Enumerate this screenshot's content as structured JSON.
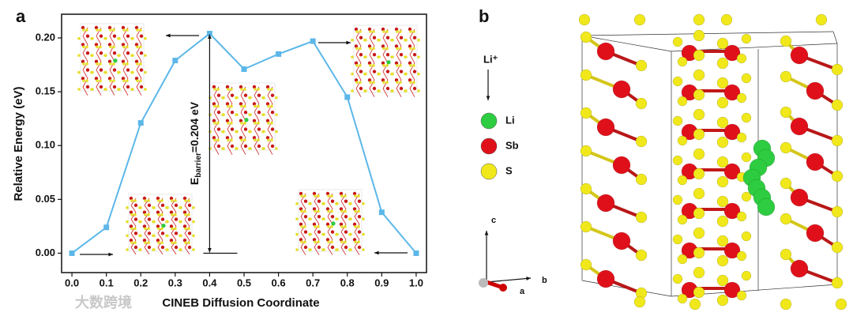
{
  "panel_labels": [
    "a",
    "b"
  ],
  "chart_data": {
    "type": "line",
    "xlabel": "CINEB Diffusion Coordinate",
    "ylabel": "Relative Energy (eV)",
    "annotation": {
      "symbol": "E",
      "subscript": "barrier",
      "text": "=0.204 eV"
    },
    "x": [
      0.0,
      0.1,
      0.2,
      0.3,
      0.4,
      0.5,
      0.6,
      0.7,
      0.8,
      0.9,
      1.0
    ],
    "series": [
      {
        "name": "CINEB",
        "color": "#5cb7e8",
        "values": [
          0.0,
          0.024,
          0.121,
          0.179,
          0.204,
          0.171,
          0.185,
          0.197,
          0.145,
          0.038,
          0.0
        ]
      }
    ],
    "xlim": [
      -0.03,
      1.03
    ],
    "ylim": [
      -0.018,
      0.222
    ],
    "xticks": [
      {
        "value": 0.0,
        "label": "0.0"
      },
      {
        "value": 0.1,
        "label": "0.1"
      },
      {
        "value": 0.2,
        "label": "0.2"
      },
      {
        "value": 0.3,
        "label": "0.3"
      },
      {
        "value": 0.4,
        "label": "0.4"
      },
      {
        "value": 0.5,
        "label": "0.5"
      },
      {
        "value": 0.6,
        "label": "0.6"
      },
      {
        "value": 0.7,
        "label": "0.7"
      },
      {
        "value": 0.8,
        "label": "0.8"
      },
      {
        "value": 0.9,
        "label": "0.9"
      },
      {
        "value": 1.0,
        "label": "1.0"
      }
    ],
    "yticks": [
      {
        "value": 0.0,
        "label": "0.00"
      },
      {
        "value": 0.05,
        "label": "0.05"
      },
      {
        "value": 0.1,
        "label": "0.10"
      },
      {
        "value": 0.15,
        "label": "0.15"
      },
      {
        "value": 0.2,
        "label": "0.20"
      }
    ]
  },
  "structure": {
    "arrow_label": "Li⁺",
    "legend": [
      {
        "name": "Li",
        "color": "#2ecc40"
      },
      {
        "name": "Sb",
        "color": "#e0101a"
      },
      {
        "name": "S",
        "color": "#f0e81a"
      }
    ],
    "axes": [
      "c",
      "b",
      "a"
    ]
  },
  "watermark": "大数跨境"
}
